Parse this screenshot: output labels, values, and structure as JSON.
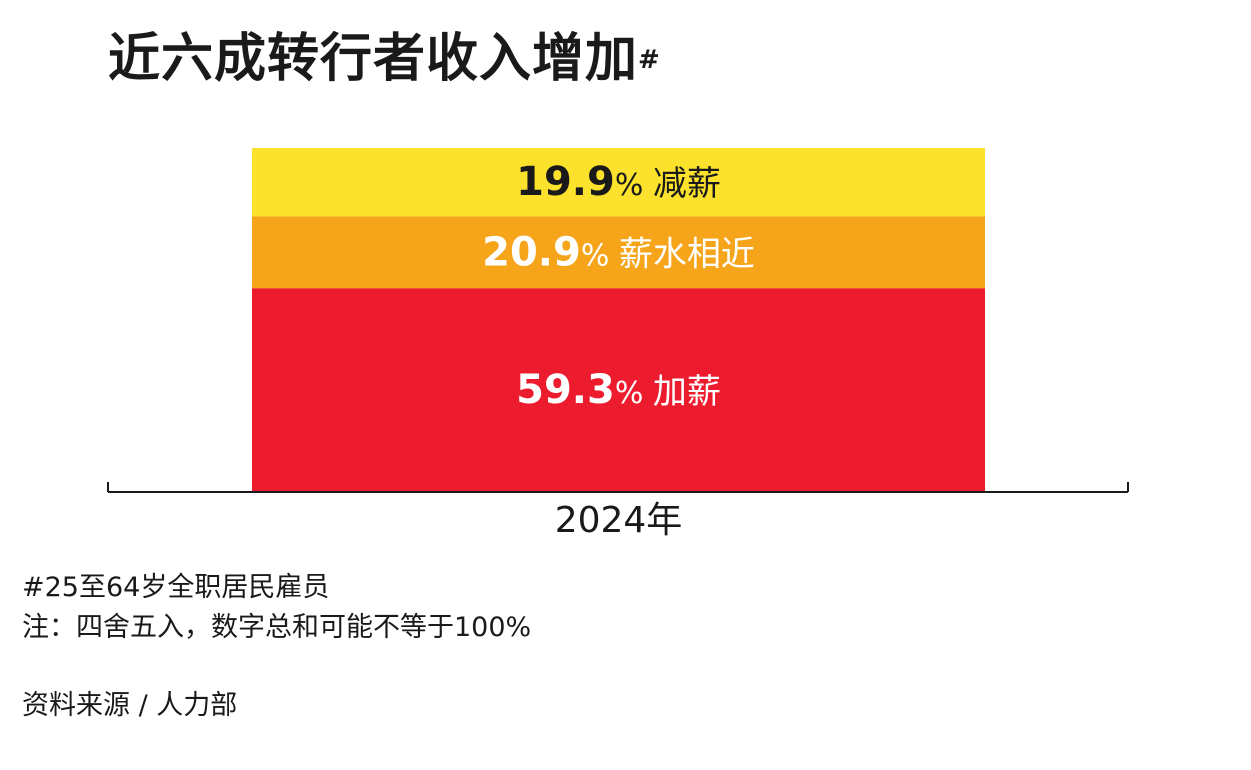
{
  "title": "近六成转行者收入增加",
  "title_marker": "#",
  "footnotes": [
    "#25至64岁全职居民雇员",
    "注：四舍五入，数字总和可能不等于100%"
  ],
  "source": "资料来源 / 人力部",
  "colors": {
    "increase": "#ec1c2e",
    "same": "#f6a51b",
    "decrease": "#fce22c",
    "axis": "#1a1a1a",
    "label_dark": "#1a1a1a",
    "label_light": "#ffffff"
  },
  "chart_data": {
    "type": "bar",
    "stacked": true,
    "categories": [
      "2024年"
    ],
    "series": [
      {
        "name": "加薪",
        "values": [
          59.3
        ],
        "label": "59.3",
        "unit": "%",
        "color": "#ec1c2e",
        "text_color": "#ffffff"
      },
      {
        "name": "薪水相近",
        "values": [
          20.9
        ],
        "label": "20.9",
        "unit": "%",
        "color": "#f6a51b",
        "text_color": "#ffffff"
      },
      {
        "name": "减薪",
        "values": [
          19.9
        ],
        "label": "19.9",
        "unit": "%",
        "color": "#fce22c",
        "text_color": "#1a1a1a"
      }
    ],
    "ylim": [
      0,
      100.1
    ],
    "grid": false
  }
}
